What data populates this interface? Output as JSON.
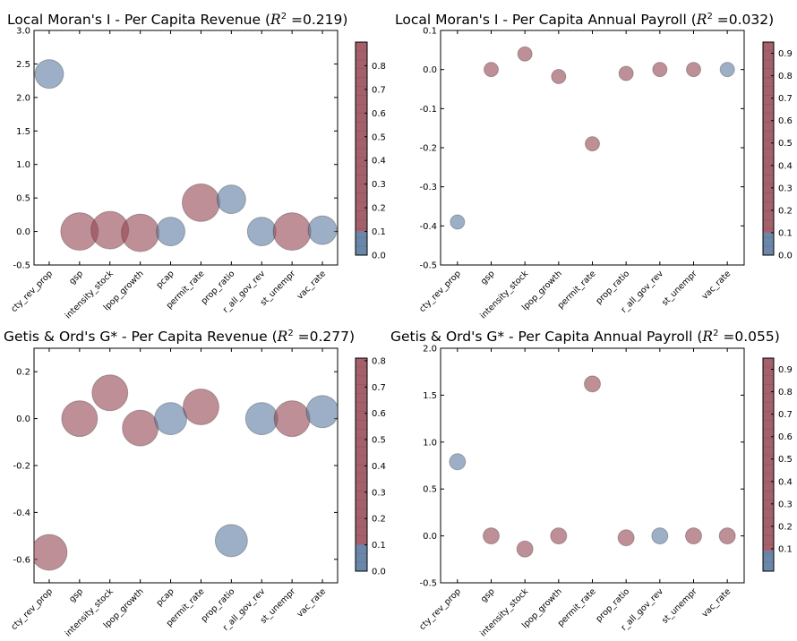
{
  "chart_data": [
    {
      "type": "scatter",
      "title_main": "Local Moran's I - Per Capita Revenue",
      "title_r2": "=0.219",
      "categories": [
        "cty_rev_prop",
        "gsp",
        "intensity_stock",
        "lpop_growth",
        "pcap",
        "permit_rate",
        "prop_ratio",
        "r_all_gov_rev",
        "st_unempr",
        "vac_rate"
      ],
      "x": [
        1,
        2,
        3,
        4,
        5,
        6,
        7,
        8,
        9,
        10
      ],
      "values": [
        2.35,
        0.0,
        0.02,
        -0.02,
        0.0,
        0.43,
        0.48,
        0.0,
        0.0,
        0.02
      ],
      "color_values": [
        0.07,
        0.5,
        0.5,
        0.5,
        0.07,
        0.5,
        0.07,
        0.07,
        0.5,
        0.07
      ],
      "ylim": [
        -0.5,
        3.0
      ],
      "yticks": [
        "-0.5",
        "0.0",
        "0.5",
        "1.0",
        "1.5",
        "2.0",
        "2.5",
        "3.0"
      ],
      "colorbar_ticks": [
        "0.0",
        "0.1",
        "0.2",
        "0.3",
        "0.4",
        "0.5",
        "0.6",
        "0.7",
        "0.8"
      ],
      "colorbar_max": 0.9,
      "colorbar_split": 0.1,
      "grid": false
    },
    {
      "type": "scatter",
      "title_main": "Local Moran's I - Per Capita Annual Payroll",
      "title_r2": "=0.032",
      "categories": [
        "cty_rev_prop",
        "gsp",
        "intensity_stock",
        "lpop_growth",
        "permit_rate",
        "prop_ratio",
        "r_all_gov_rev",
        "st_unempr",
        "vac_rate"
      ],
      "x": [
        1,
        2,
        3,
        4,
        5,
        6,
        7,
        8,
        9
      ],
      "values": [
        -0.39,
        0.0,
        0.04,
        -0.018,
        -0.19,
        -0.01,
        0.0,
        0.0,
        0.0
      ],
      "color_values": [
        0.07,
        0.5,
        0.5,
        0.5,
        0.5,
        0.5,
        0.5,
        0.5,
        0.07
      ],
      "ylim": [
        -0.5,
        0.1
      ],
      "yticks": [
        "-0.5",
        "-0.4",
        "-0.3",
        "-0.2",
        "-0.1",
        "0.0",
        "0.1"
      ],
      "colorbar_ticks": [
        "0.0",
        "0.1",
        "0.2",
        "0.3",
        "0.4",
        "0.5",
        "0.6",
        "0.7",
        "0.8",
        "0.9"
      ],
      "colorbar_max": 0.95,
      "colorbar_split": 0.1,
      "grid": false
    },
    {
      "type": "scatter",
      "title_main": "Getis & Ord's G* - Per Capita Revenue",
      "title_r2": "=0.277",
      "categories": [
        "cty_rev_prop",
        "gsp",
        "intensity_stock",
        "lpop_growth",
        "pcap",
        "permit_rate",
        "prop_ratio",
        "r_all_gov_rev",
        "st_unempr",
        "vac_rate"
      ],
      "x": [
        1,
        2,
        3,
        4,
        5,
        6,
        7,
        8,
        9,
        10
      ],
      "values": [
        -0.57,
        0.0,
        0.11,
        -0.04,
        0.0,
        0.05,
        -0.52,
        0.0,
        0.0,
        0.03
      ],
      "color_values": [
        0.5,
        0.5,
        0.5,
        0.5,
        0.07,
        0.5,
        0.07,
        0.07,
        0.5,
        0.07
      ],
      "ylim": [
        -0.7,
        0.3
      ],
      "yticks": [
        "-0.6",
        "-0.4",
        "-0.2",
        "0.0",
        "0.2"
      ],
      "colorbar_ticks": [
        "0.0",
        "0.1",
        "0.2",
        "0.3",
        "0.4",
        "0.5",
        "0.6",
        "0.7",
        "0.8"
      ],
      "colorbar_max": 0.81,
      "colorbar_split": 0.1,
      "grid": false
    },
    {
      "type": "scatter",
      "title_main": "Getis & Ord's G* - Per Capita Annual Payroll",
      "title_r2": "=0.055",
      "categories": [
        "cty_rev_prop",
        "gsp",
        "intensity_stock",
        "lpop_growth",
        "permit_rate",
        "prop_ratio",
        "r_all_gov_rev",
        "st_unempr",
        "vac_rate"
      ],
      "x": [
        1,
        2,
        3,
        4,
        5,
        6,
        7,
        8,
        9
      ],
      "values": [
        0.79,
        0.0,
        -0.14,
        0.0,
        1.62,
        -0.02,
        0.0,
        0.0,
        0.0
      ],
      "color_values": [
        0.07,
        0.5,
        0.5,
        0.5,
        0.5,
        0.5,
        0.07,
        0.5,
        0.5
      ],
      "ylim": [
        -0.5,
        2.0
      ],
      "yticks": [
        "-0.5",
        "0.0",
        "0.5",
        "1.0",
        "1.5",
        "2.0"
      ],
      "colorbar_ticks": [
        "0.1",
        "0.2",
        "0.3",
        "0.4",
        "0.5",
        "0.6",
        "0.7",
        "0.8",
        "0.9"
      ],
      "colorbar_max": 0.95,
      "colorbar_split": 0.09,
      "grid": false
    }
  ],
  "colors": {
    "low": "#5a7aa0",
    "high": "#944451",
    "axis": "#000000"
  }
}
